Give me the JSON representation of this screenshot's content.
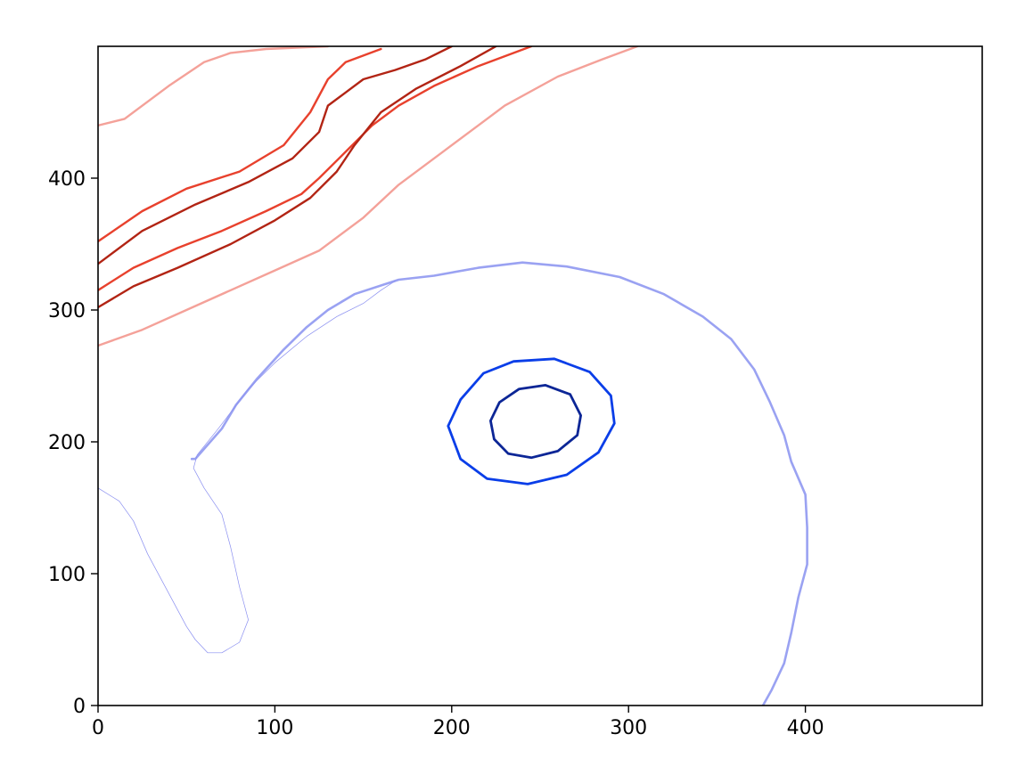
{
  "chart_data": {
    "type": "contour",
    "title": "",
    "xlabel": "",
    "ylabel": "",
    "xlim": [
      0,
      500
    ],
    "ylim": [
      0,
      500
    ],
    "x_ticks": [
      0,
      100,
      200,
      300,
      400
    ],
    "y_ticks": [
      0,
      100,
      200,
      300,
      400
    ],
    "grid": false,
    "colors": {
      "warm_light": "#f4a199",
      "warm_mid": "#e8412d",
      "warm_dark": "#b22414",
      "cool_light": "#9aa2f2",
      "cool_mid": "#0a3ee8",
      "cool_dark": "#0c2696",
      "coastline": "#8a8ff0"
    },
    "series": [
      {
        "id": "cool-outer",
        "color": "#9aa2f2",
        "closed": false,
        "points": [
          [
            376,
            0
          ],
          [
            381,
            12
          ],
          [
            388,
            32
          ],
          [
            392,
            55
          ],
          [
            396,
            82
          ],
          [
            401,
            107
          ],
          [
            401,
            135
          ],
          [
            400,
            160
          ],
          [
            392,
            185
          ],
          [
            388,
            205
          ],
          [
            380,
            230
          ],
          [
            371,
            255
          ],
          [
            358,
            278
          ],
          [
            342,
            295
          ],
          [
            320,
            312
          ],
          [
            295,
            325
          ],
          [
            265,
            333
          ],
          [
            240,
            336
          ],
          [
            215,
            332
          ],
          [
            190,
            326
          ],
          [
            170,
            323
          ],
          [
            145,
            312
          ],
          [
            130,
            300
          ],
          [
            118,
            287
          ],
          [
            105,
            270
          ],
          [
            90,
            248
          ],
          [
            78,
            228
          ],
          [
            70,
            210
          ],
          [
            55,
            187
          ],
          [
            53,
            187
          ]
        ]
      },
      {
        "id": "cool-mid-ring",
        "color": "#0a3ee8",
        "closed": true,
        "points": [
          [
            198,
            212
          ],
          [
            205,
            232
          ],
          [
            218,
            252
          ],
          [
            235,
            261
          ],
          [
            258,
            263
          ],
          [
            278,
            253
          ],
          [
            290,
            235
          ],
          [
            292,
            214
          ],
          [
            283,
            192
          ],
          [
            265,
            175
          ],
          [
            243,
            168
          ],
          [
            220,
            172
          ],
          [
            205,
            187
          ]
        ]
      },
      {
        "id": "cool-inner-ring",
        "color": "#0c2696",
        "closed": true,
        "points": [
          [
            222,
            216
          ],
          [
            227,
            230
          ],
          [
            238,
            240
          ],
          [
            253,
            243
          ],
          [
            267,
            236
          ],
          [
            273,
            220
          ],
          [
            271,
            205
          ],
          [
            260,
            193
          ],
          [
            245,
            188
          ],
          [
            232,
            191
          ],
          [
            224,
            202
          ]
        ]
      },
      {
        "id": "warm-light-band",
        "color": "#f4a199",
        "closed": false,
        "points": [
          [
            0,
            273
          ],
          [
            25,
            285
          ],
          [
            50,
            300
          ],
          [
            75,
            315
          ],
          [
            100,
            330
          ],
          [
            125,
            345
          ],
          [
            150,
            370
          ],
          [
            170,
            395
          ],
          [
            195,
            420
          ],
          [
            215,
            440
          ],
          [
            230,
            455
          ],
          [
            260,
            477
          ],
          [
            285,
            490
          ],
          [
            305,
            500
          ]
        ]
      },
      {
        "id": "warm-light-band-2",
        "color": "#f4a199",
        "closed": false,
        "points": [
          [
            0,
            440
          ],
          [
            15,
            445
          ],
          [
            40,
            470
          ],
          [
            60,
            488
          ],
          [
            75,
            495
          ],
          [
            95,
            498
          ],
          [
            130,
            500
          ]
        ]
      },
      {
        "id": "warm-mid-band",
        "color": "#e8412d",
        "closed": false,
        "points": [
          [
            0,
            315
          ],
          [
            20,
            332
          ],
          [
            45,
            347
          ],
          [
            70,
            360
          ],
          [
            95,
            375
          ],
          [
            115,
            388
          ],
          [
            125,
            400
          ],
          [
            140,
            420
          ],
          [
            155,
            440
          ],
          [
            170,
            455
          ],
          [
            190,
            470
          ],
          [
            215,
            485
          ],
          [
            245,
            500
          ]
        ]
      },
      {
        "id": "warm-dark-band-lower",
        "color": "#b22414",
        "closed": false,
        "points": [
          [
            0,
            302
          ],
          [
            20,
            318
          ],
          [
            45,
            332
          ],
          [
            75,
            350
          ],
          [
            100,
            368
          ],
          [
            120,
            385
          ],
          [
            135,
            405
          ],
          [
            145,
            425
          ],
          [
            160,
            450
          ],
          [
            180,
            468
          ],
          [
            205,
            485
          ],
          [
            225,
            500
          ]
        ]
      },
      {
        "id": "warm-dark-band-upper",
        "color": "#b22414",
        "closed": false,
        "points": [
          [
            0,
            335
          ],
          [
            25,
            360
          ],
          [
            55,
            380
          ],
          [
            85,
            397
          ],
          [
            110,
            415
          ],
          [
            125,
            435
          ],
          [
            130,
            455
          ],
          [
            140,
            465
          ],
          [
            150,
            475
          ],
          [
            168,
            482
          ],
          [
            185,
            490
          ],
          [
            200,
            500
          ]
        ]
      },
      {
        "id": "warm-mid-band-upper",
        "color": "#e8412d",
        "closed": false,
        "points": [
          [
            0,
            352
          ],
          [
            25,
            375
          ],
          [
            50,
            392
          ],
          [
            80,
            405
          ],
          [
            105,
            425
          ],
          [
            120,
            450
          ],
          [
            130,
            475
          ],
          [
            140,
            488
          ],
          [
            160,
            498
          ]
        ]
      },
      {
        "id": "coastline-florida",
        "color": "#8a8ff0",
        "closed": false,
        "points": [
          [
            0,
            165
          ],
          [
            12,
            155
          ],
          [
            20,
            140
          ],
          [
            28,
            115
          ],
          [
            40,
            85
          ],
          [
            50,
            60
          ],
          [
            55,
            50
          ],
          [
            62,
            40
          ],
          [
            70,
            40
          ],
          [
            80,
            48
          ],
          [
            85,
            65
          ],
          [
            80,
            90
          ],
          [
            75,
            120
          ],
          [
            70,
            145
          ],
          [
            60,
            165
          ],
          [
            54,
            180
          ],
          [
            56,
            190
          ],
          [
            68,
            210
          ],
          [
            85,
            240
          ],
          [
            100,
            260
          ],
          [
            118,
            280
          ],
          [
            135,
            295
          ],
          [
            150,
            305
          ],
          [
            160,
            315
          ],
          [
            168,
            322
          ]
        ]
      }
    ]
  }
}
